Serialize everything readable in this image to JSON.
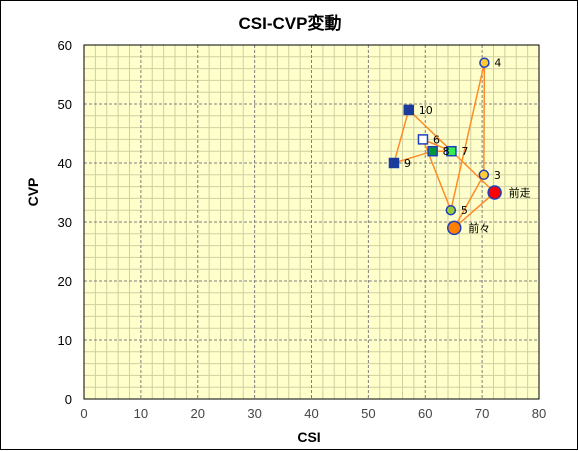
{
  "chart_data": {
    "type": "scatter",
    "title": "CSI-CVP変動",
    "xlabel": "CSI",
    "ylabel": "CVP",
    "xlim": [
      0,
      80
    ],
    "ylim": [
      0,
      60
    ],
    "xticks": [
      0,
      10,
      20,
      30,
      40,
      50,
      60,
      70,
      80
    ],
    "yticks": [
      0,
      10,
      20,
      30,
      40,
      50,
      60
    ],
    "grid": true,
    "legend": "none",
    "colors": {
      "plot_background": "#ffffcc",
      "connector_line": "#ff8c28",
      "major_grid": "#7f7f7f",
      "minor_grid": "#cfcfa0"
    },
    "points": [
      {
        "label": "前走",
        "x": 72.2,
        "y": 35.0,
        "marker": "circle",
        "size": "large",
        "fill": "#ff0000",
        "stroke": "#1f3fbf"
      },
      {
        "label": "前々",
        "x": 65.1,
        "y": 29.0,
        "marker": "circle",
        "size": "large",
        "fill": "#ff8000",
        "stroke": "#1f3fbf"
      },
      {
        "label": "3",
        "x": 70.3,
        "y": 38.0,
        "marker": "circle",
        "size": "small",
        "fill": "#ffcc33",
        "stroke": "#1f3fbf"
      },
      {
        "label": "4",
        "x": 70.4,
        "y": 57.0,
        "marker": "circle",
        "size": "small",
        "fill": "#ffcc33",
        "stroke": "#1f3fbf"
      },
      {
        "label": "5",
        "x": 64.5,
        "y": 32.0,
        "marker": "circle",
        "size": "small",
        "fill": "#99cc33",
        "stroke": "#1f3fbf"
      },
      {
        "label": "6",
        "x": 59.6,
        "y": 44.0,
        "marker": "square",
        "fill": "#ffffff",
        "stroke": "#1f3fbf"
      },
      {
        "label": "7",
        "x": 64.6,
        "y": 42.0,
        "marker": "square",
        "fill": "#33ee55",
        "stroke": "#1f3fbf"
      },
      {
        "label": "8",
        "x": 61.3,
        "y": 42.0,
        "marker": "square",
        "fill": "#009933",
        "stroke": "#1f3fbf"
      },
      {
        "label": "9",
        "x": 54.5,
        "y": 40.0,
        "marker": "square",
        "fill": "#1a3a9c",
        "stroke": "#1a3a9c"
      },
      {
        "label": "10",
        "x": 57.1,
        "y": 49.0,
        "marker": "square",
        "fill": "#1a3a9c",
        "stroke": "#1a3a9c"
      }
    ]
  }
}
